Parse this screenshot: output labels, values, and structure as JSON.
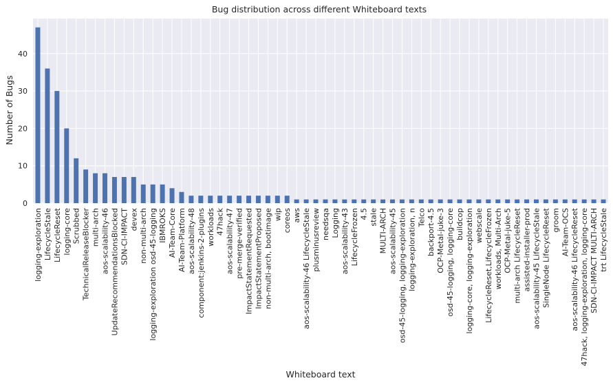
{
  "chart_data": {
    "type": "bar",
    "title": "Bug distribution across different Whiteboard texts",
    "xlabel": "Whiteboard text",
    "ylabel": "Number of Bugs",
    "ylim": [
      0,
      49.35
    ],
    "yticks": [
      0,
      10,
      20,
      30,
      40
    ],
    "grid": true,
    "bar_color": "#4c72b0",
    "background_color": "#eaeaf2",
    "categories": [
      "logging-exploration",
      "LifecycleStale",
      "LifecycleReset",
      "logging-core",
      "Scrubbed",
      "TechnicalReleaseBlocker",
      "multi-arch",
      "aos-scalability-46",
      "UpdateRecommendationsBlocked",
      "SDN-CI-IMPACT",
      "devex",
      "non-multi-arch",
      "logging-exploration osd-45-logging",
      "IBMROKS",
      "AI-Team-Core",
      "AI-Team-Platform",
      "aos-scalability-48",
      "component:jenkins-2-plugins",
      "workloads",
      "47hack",
      "aos-scalability-47",
      "pre-merge-verified",
      "ImpactStatementRequested",
      "ImpactStatementProposed",
      "non-multi-arch, bootimage",
      "wip",
      "coreos",
      "aws",
      "aos-scalability-46 LifecycleStale",
      "plusminusreview",
      "needsqa",
      "Logging",
      "aos-scalability-43",
      "LifecycleFrozen",
      "4.5",
      "stale",
      "MULTI-ARCH",
      "aos-scalability-45",
      "osd-45-logging, logging-exploration",
      "logging-exploration, n",
      "Telco",
      "backport-4.5",
      "OCP-Metal-juke-3",
      "osd-45-logging, logging-core",
      "buildcop",
      "logging-core, logging-exploration",
      "webscale",
      "LifecycleReset,LifecycleFrozen",
      "workloads, Multi-Arch",
      "OCP-Metal-juke-5",
      "multi-arch LifecycleReset",
      "assisted-installer-prod",
      "aos-scalability-45 LifecycleStale",
      "SingleNode LifecycleReset",
      "groom",
      "AI-Team-OCS",
      "aos-scalability-46 LifecycleReset",
      "47hack, logging-exploration, logging-core",
      "SDN-CI-IMPACT MULTI-ARCH",
      "trt LifecycleStale"
    ],
    "values": [
      47,
      36,
      30,
      20,
      12,
      9,
      8,
      8,
      7,
      7,
      7,
      5,
      5,
      5,
      4,
      3,
      2,
      2,
      2,
      2,
      2,
      2,
      2,
      2,
      2,
      2,
      2,
      1,
      1,
      1,
      1,
      1,
      1,
      1,
      1,
      1,
      1,
      1,
      1,
      1,
      1,
      1,
      1,
      1,
      1,
      1,
      1,
      1,
      1,
      1,
      1,
      1,
      1,
      1,
      1,
      1,
      1,
      1,
      1,
      1
    ]
  }
}
